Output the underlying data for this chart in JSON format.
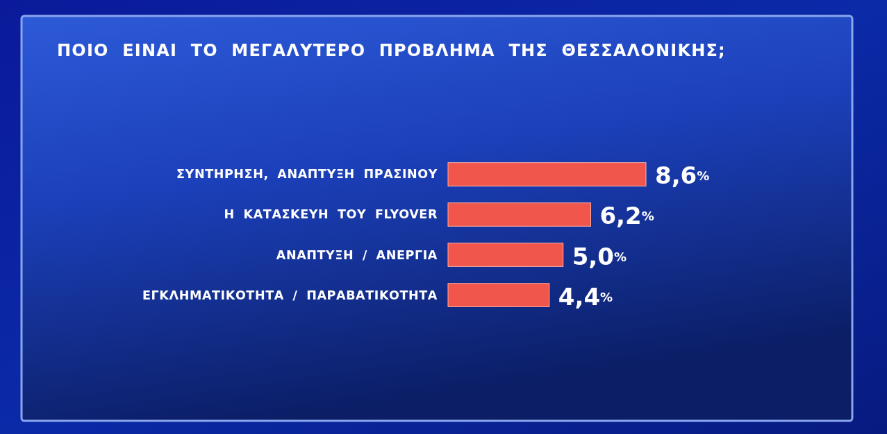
{
  "chart_data": {
    "type": "bar",
    "orientation": "horizontal",
    "title": "ΠΟΙΟ ΕΙΝΑΙ ΤΟ ΜΕΓΑΛΥΤΕΡΟ ΠΡΟΒΛΗΜΑ ΤΗΣ ΘΕΣΣΑΛΟΝΙΚΗΣ;",
    "categories": [
      "ΣΥΝΤΗΡΗΣΗ, ΑΝΑΠΤΥΞΗ ΠΡΑΣΙΝΟΥ",
      "Η ΚΑΤΑΣΚΕΥΗ ΤΟΥ FLYOVER",
      "ΑΝΑΠΤΥΞΗ / ΑΝΕΡΓΙΑ",
      "ΕΓΚΛΗΜΑΤΙΚΟΤΗΤΑ / ΠΑΡΑΒΑΤΙΚΟΤΗΤΑ"
    ],
    "values": [
      8.6,
      6.2,
      5.0,
      4.4
    ],
    "value_labels": [
      "8,6%",
      "6,2%",
      "5,0%",
      "4,4%"
    ],
    "color": "#f0564c",
    "tick_labels": "y"
  }
}
